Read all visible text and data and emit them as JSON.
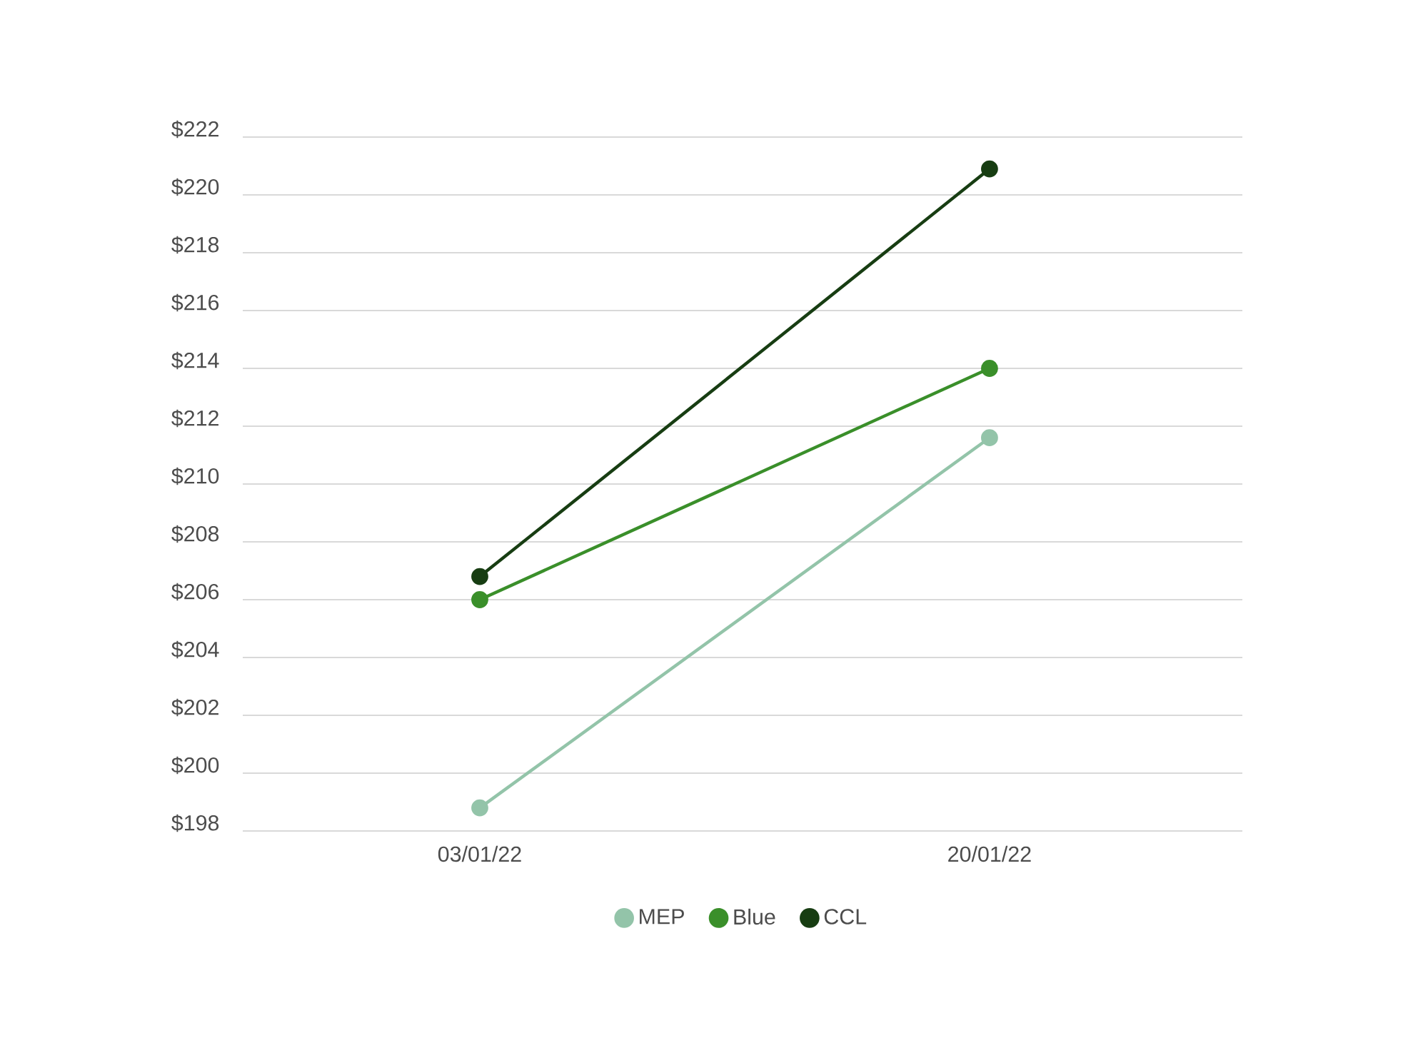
{
  "chart_data": {
    "type": "line",
    "categories": [
      "03/01/22",
      "20/01/22"
    ],
    "series": [
      {
        "name": "MEP",
        "color": "#93c4a9",
        "values": [
          198.8,
          211.6
        ]
      },
      {
        "name": "Blue",
        "color": "#3a8f2a",
        "values": [
          206.0,
          214.0
        ]
      },
      {
        "name": "CCL",
        "color": "#173d12",
        "values": [
          206.8,
          220.9
        ]
      }
    ],
    "ylim": [
      198,
      222
    ],
    "yticks": [
      {
        "value": 198,
        "label": "$198"
      },
      {
        "value": 200,
        "label": "$200"
      },
      {
        "value": 202,
        "label": "$202"
      },
      {
        "value": 204,
        "label": "$204"
      },
      {
        "value": 206,
        "label": "$206"
      },
      {
        "value": 208,
        "label": "$208"
      },
      {
        "value": 210,
        "label": "$210"
      },
      {
        "value": 212,
        "label": "$212"
      },
      {
        "value": 214,
        "label": "$214"
      },
      {
        "value": 216,
        "label": "$216"
      },
      {
        "value": 218,
        "label": "$218"
      },
      {
        "value": 220,
        "label": "$220"
      },
      {
        "value": 222,
        "label": "$222"
      }
    ],
    "grid": "y",
    "legend": "bottom",
    "marker": "circle",
    "line_style": "solid"
  }
}
